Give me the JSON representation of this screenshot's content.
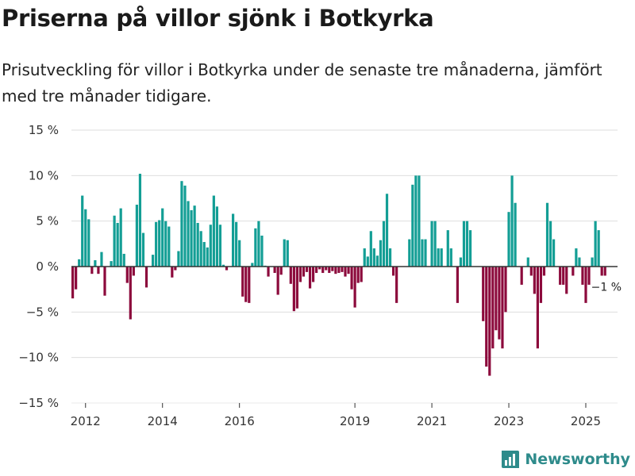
{
  "title": "Priserna på villor sjönk i Botkyrka",
  "subtitle": "Prisutveckling för villor i Botkyrka under de senaste tre månaderna, jämfört med tre månader tidigare.",
  "brand": "Newsworthy",
  "colors": {
    "positive": "#139e95",
    "negative": "#8c0a3c",
    "brand": "#2e8b8b"
  },
  "chart_data": {
    "type": "bar",
    "title": "Priserna på villor sjönk i Botkyrka",
    "xlabel": "",
    "ylabel": "",
    "ylim": [
      -15,
      15
    ],
    "grid": true,
    "y_ticks": [
      {
        "value": 15,
        "label": "15 %"
      },
      {
        "value": 10,
        "label": "10 %"
      },
      {
        "value": 5,
        "label": "5 %"
      },
      {
        "value": 0,
        "label": "0 %"
      },
      {
        "value": -5,
        "label": "−5 %"
      },
      {
        "value": -10,
        "label": "−10 %"
      },
      {
        "value": -15,
        "label": "−15 %"
      }
    ],
    "x_ticks": [
      {
        "index": 4,
        "label": "2012"
      },
      {
        "index": 28,
        "label": "2014"
      },
      {
        "index": 52,
        "label": "2016"
      },
      {
        "index": 88,
        "label": "2019"
      },
      {
        "index": 112,
        "label": "2021"
      },
      {
        "index": 136,
        "label": "2023"
      },
      {
        "index": 160,
        "label": "2025"
      }
    ],
    "last_value_label": "−1 %",
    "values": [
      -3.5,
      -2.5,
      0.8,
      7.8,
      6.3,
      5.2,
      -0.8,
      0.7,
      -0.8,
      1.6,
      -3.2,
      0,
      0.6,
      5.6,
      4.8,
      6.4,
      1.4,
      -1.8,
      -5.8,
      -1.0,
      6.8,
      10.2,
      3.7,
      -2.3,
      0,
      1.3,
      4.9,
      5.1,
      6.4,
      5.0,
      4.4,
      -1.2,
      -0.4,
      1.7,
      9.4,
      8.9,
      7.2,
      6.2,
      6.7,
      4.8,
      3.9,
      2.7,
      2.1,
      4.6,
      7.8,
      6.6,
      4.6,
      0.2,
      -0.4,
      0,
      5.8,
      4.9,
      2.9,
      -3.3,
      -3.9,
      -4.0,
      0.4,
      4.2,
      5.0,
      3.4,
      0.1,
      -1.1,
      0,
      -0.7,
      -3.1,
      -0.9,
      3.0,
      2.9,
      -1.9,
      -4.9,
      -4.6,
      -1.7,
      -1.1,
      -0.6,
      -2.4,
      -1.7,
      -0.7,
      -0.3,
      -0.7,
      -0.4,
      -0.7,
      -0.5,
      -0.8,
      -0.7,
      -0.6,
      -1.1,
      -0.8,
      -2.5,
      -4.5,
      -1.8,
      -1.7,
      2.0,
      1.1,
      3.9,
      2.0,
      1.2,
      2.9,
      5.0,
      8.0,
      2.0,
      -1.0,
      -4.0,
      0,
      0,
      0,
      3.0,
      9.0,
      10.0,
      10.0,
      3.0,
      3.0,
      0,
      5.0,
      5.0,
      2.0,
      2.0,
      0,
      4.0,
      2.0,
      0,
      -4.0,
      1.0,
      5.0,
      5.0,
      4.0,
      0,
      0,
      0,
      -6.0,
      -11.0,
      -12.0,
      -9.0,
      -7.0,
      -8.0,
      -9.0,
      -5.0,
      6.0,
      10.0,
      7.0,
      0,
      -2.0,
      0,
      1.0,
      -1.0,
      -3.0,
      -9.0,
      -4.0,
      -1.0,
      7.0,
      5.0,
      3.0,
      0,
      -2.0,
      -2.0,
      -3.0,
      0,
      -1.0,
      2.0,
      1.0,
      -2.0,
      -4.0,
      -2.0,
      1.0,
      5.0,
      4.0,
      -1.0,
      -1.0
    ]
  }
}
